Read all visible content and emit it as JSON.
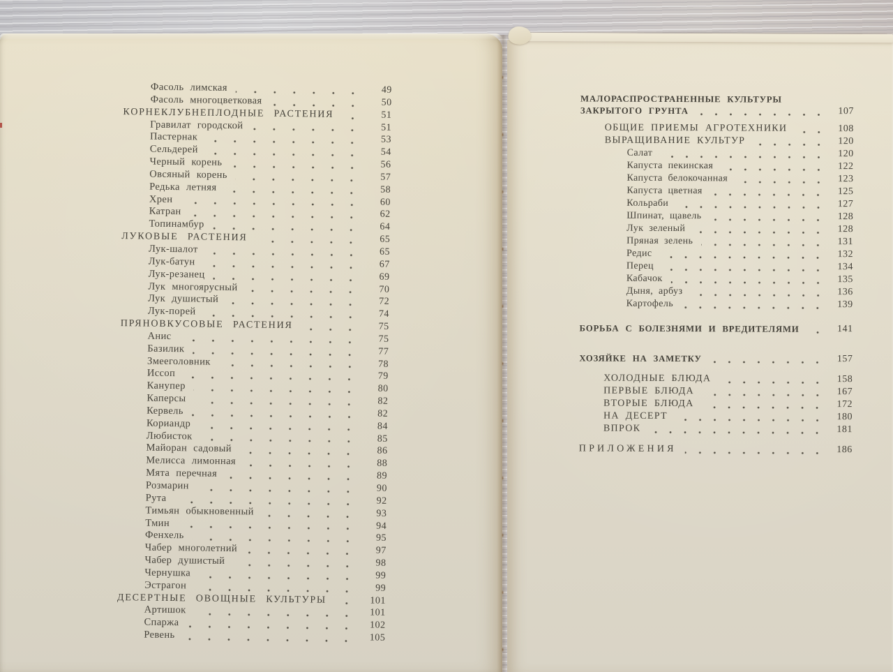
{
  "book": {
    "left_page": {
      "entries": [
        {
          "label": "Фасоль лимская",
          "page": "49",
          "level": "item"
        },
        {
          "label": "Фасоль многоцветковая",
          "page": "50",
          "level": "item"
        },
        {
          "label": "КОРНЕКЛУБНЕПЛОДНЫЕ РАСТЕНИЯ",
          "page": "51",
          "level": "heading"
        },
        {
          "label": "Гравилат городской",
          "page": "51",
          "level": "item"
        },
        {
          "label": "Пастернак",
          "page": "53",
          "level": "item"
        },
        {
          "label": "Сельдерей",
          "page": "54",
          "level": "item"
        },
        {
          "label": "Черный корень",
          "page": "56",
          "level": "item"
        },
        {
          "label": "Овсяный корень",
          "page": "57",
          "level": "item"
        },
        {
          "label": "Редька летняя",
          "page": "58",
          "level": "item"
        },
        {
          "label": "Хрен",
          "page": "60",
          "level": "item"
        },
        {
          "label": "Катран",
          "page": "62",
          "level": "item"
        },
        {
          "label": "Топинамбур",
          "page": "64",
          "level": "item"
        },
        {
          "label": "ЛУКОВЫЕ РАСТЕНИЯ",
          "page": "65",
          "level": "heading"
        },
        {
          "label": "Лук-шалот",
          "page": "65",
          "level": "item"
        },
        {
          "label": "Лук-батун",
          "page": "67",
          "level": "item"
        },
        {
          "label": "Лук-резанец",
          "page": "69",
          "level": "item"
        },
        {
          "label": "Лук многоярусный",
          "page": "70",
          "level": "item"
        },
        {
          "label": "Лук душистый",
          "page": "72",
          "level": "item"
        },
        {
          "label": "Лук-порей",
          "page": "74",
          "level": "item"
        },
        {
          "label": "ПРЯНОВКУСОВЫЕ РАСТЕНИЯ",
          "page": "75",
          "level": "heading"
        },
        {
          "label": "Анис",
          "page": "75",
          "level": "item"
        },
        {
          "label": "Базилик",
          "page": "77",
          "level": "item"
        },
        {
          "label": "Змееголовник",
          "page": "78",
          "level": "item"
        },
        {
          "label": "Иссоп",
          "page": "79",
          "level": "item"
        },
        {
          "label": "Канупер",
          "page": "80",
          "level": "item"
        },
        {
          "label": "Каперсы",
          "page": "82",
          "level": "item"
        },
        {
          "label": "Кервель",
          "page": "82",
          "level": "item"
        },
        {
          "label": "Кориандр",
          "page": "84",
          "level": "item"
        },
        {
          "label": "Любисток",
          "page": "85",
          "level": "item"
        },
        {
          "label": "Майоран садовый",
          "page": "86",
          "level": "item"
        },
        {
          "label": "Мелисса лимонная",
          "page": "88",
          "level": "item"
        },
        {
          "label": "Мята перечная",
          "page": "89",
          "level": "item"
        },
        {
          "label": "Розмарин",
          "page": "90",
          "level": "item"
        },
        {
          "label": "Рута",
          "page": "92",
          "level": "item"
        },
        {
          "label": "Тимьян обыкновенный",
          "page": "93",
          "level": "item"
        },
        {
          "label": "Тмин",
          "page": "94",
          "level": "item"
        },
        {
          "label": "Фенхель",
          "page": "95",
          "level": "item"
        },
        {
          "label": "Чабер многолетний",
          "page": "97",
          "level": "item"
        },
        {
          "label": "Чабер душистый",
          "page": "98",
          "level": "item"
        },
        {
          "label": "Чернушка",
          "page": "99",
          "level": "item"
        },
        {
          "label": "Эстрагон",
          "page": "99",
          "level": "item"
        },
        {
          "label": "ДЕСЕРТНЫЕ ОВОЩНЫЕ КУЛЬТУРЫ",
          "page": "101",
          "level": "heading"
        },
        {
          "label": "Артишок",
          "page": "101",
          "level": "item"
        },
        {
          "label": "Спаржа",
          "page": "102",
          "level": "item"
        },
        {
          "label": "Ревень",
          "page": "105",
          "level": "item"
        }
      ]
    },
    "right_page": {
      "entries": [
        {
          "label": "МАЛОРАСПРОСТРАНЕННЫЕ КУЛЬТУРЫ",
          "page": null,
          "level": "chapter",
          "tight": true
        },
        {
          "label": "ЗАКРЫТОГО ГРУНТА",
          "page": "107",
          "level": "chapter"
        },
        {
          "label": "ОБЩИЕ ПРИЕМЫ АГРОТЕХНИКИ",
          "page": "108",
          "level": "subheading",
          "gap": "small"
        },
        {
          "label": "ВЫРАЩИВАНИЕ КУЛЬТУР",
          "page": "120",
          "level": "subheading"
        },
        {
          "label": "Салат",
          "page": "120",
          "level": "item"
        },
        {
          "label": "Капуста пекинская",
          "page": "122",
          "level": "item"
        },
        {
          "label": "Капуста белокочанная",
          "page": "123",
          "level": "item"
        },
        {
          "label": "Капуста цветная",
          "page": "125",
          "level": "item"
        },
        {
          "label": "Кольраби",
          "page": "127",
          "level": "item"
        },
        {
          "label": "Шпинат, щавель",
          "page": "128",
          "level": "item"
        },
        {
          "label": "Лук зеленый",
          "page": "128",
          "level": "item"
        },
        {
          "label": "Пряная зелень",
          "page": "131",
          "level": "item"
        },
        {
          "label": "Редис",
          "page": "132",
          "level": "item"
        },
        {
          "label": "Перец",
          "page": "134",
          "level": "item"
        },
        {
          "label": "Кабачок",
          "page": "135",
          "level": "item"
        },
        {
          "label": "Дыня, арбуз",
          "page": "136",
          "level": "item"
        },
        {
          "label": "Картофель",
          "page": "139",
          "level": "item"
        },
        {
          "label": "БОРЬБА С БОЛЕЗНЯМИ И ВРЕДИТЕЛЯМИ",
          "page": "141",
          "level": "chapter",
          "gap": "section"
        },
        {
          "label": "ХОЗЯЙКЕ НА ЗАМЕТКУ",
          "page": "157",
          "level": "chapter",
          "gap": "large"
        },
        {
          "label": "ХОЛОДНЫЕ БЛЮДА",
          "page": "158",
          "level": "subheading",
          "gap": "medium"
        },
        {
          "label": "ПЕРВЫЕ БЛЮДА",
          "page": "167",
          "level": "subheading"
        },
        {
          "label": "ВТОРЫЕ БЛЮДА",
          "page": "172",
          "level": "subheading"
        },
        {
          "label": "НА ДЕСЕРТ",
          "page": "180",
          "level": "subheading"
        },
        {
          "label": "ВПРОК",
          "page": "181",
          "level": "subheading"
        },
        {
          "label": "ПРИЛОЖЕНИЯ",
          "page": "186",
          "level": "appendix",
          "gap": "medium"
        }
      ]
    },
    "style_colors": {
      "paper_left": "#e3dcc7",
      "paper_right": "#e5dfcc",
      "ink": "#45423a",
      "wood_table": "#c9c9cc",
      "binding_stitch": "#7a5834"
    }
  }
}
